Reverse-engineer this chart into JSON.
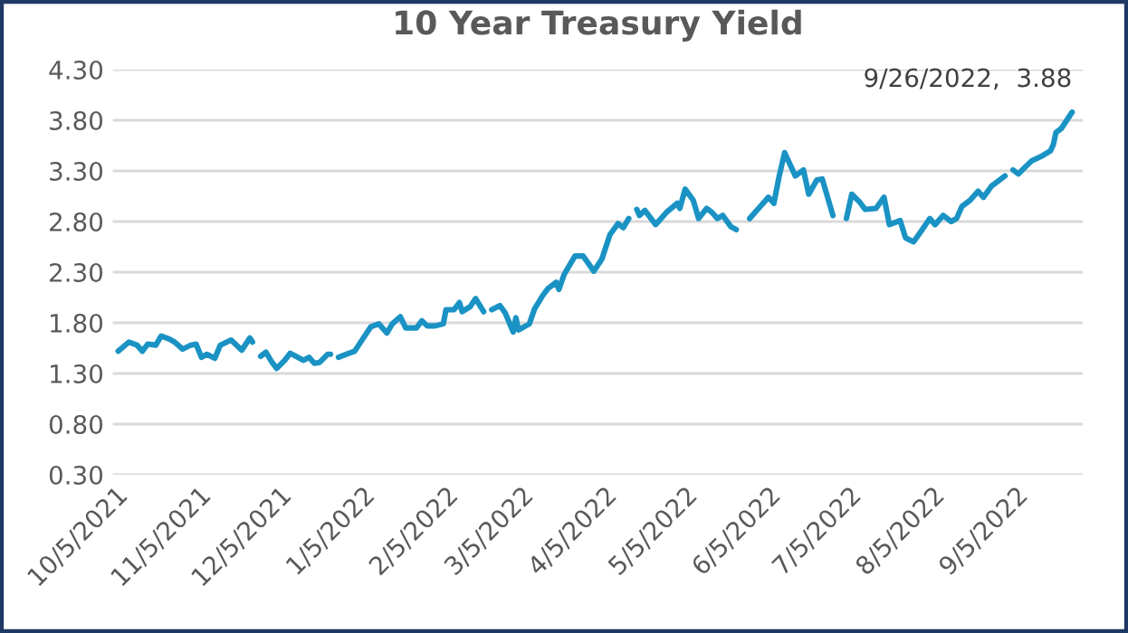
{
  "chart_data": {
    "type": "line",
    "title": "10 Year Treasury Yield",
    "x": [
      "2021-10-06",
      "2021-10-10",
      "2021-10-13",
      "2021-10-15",
      "2021-10-17",
      "2021-10-20",
      "2021-10-22",
      "2021-10-25",
      "2021-10-27",
      "2021-10-30",
      "2021-11-02",
      "2021-11-04",
      "2021-11-06",
      "2021-11-08",
      "2021-11-11",
      "2021-11-13",
      "2021-11-17",
      "2021-11-21",
      "2021-11-24",
      "2021-11-25",
      "2021-11-27",
      "2021-11-28",
      "2021-11-30",
      "2021-12-02",
      "2021-12-04",
      "2021-12-07",
      "2021-12-09",
      "2021-12-14",
      "2021-12-16",
      "2021-12-18",
      "2021-12-20",
      "2021-12-23",
      "2021-12-24",
      "2021-12-26",
      "2021-12-27",
      "2021-12-30",
      "2022-01-02",
      "2022-01-05",
      "2022-01-08",
      "2022-01-11",
      "2022-01-14",
      "2022-01-16",
      "2022-01-19",
      "2022-01-21",
      "2022-01-25",
      "2022-01-27",
      "2022-01-29",
      "2022-02-01",
      "2022-02-04",
      "2022-02-05",
      "2022-02-08",
      "2022-02-10",
      "2022-02-11",
      "2022-02-14",
      "2022-02-16",
      "2022-02-19",
      "2022-02-20",
      "2022-02-22",
      "2022-02-25",
      "2022-02-27",
      "2022-03-02",
      "2022-03-03",
      "2022-03-04",
      "2022-03-08",
      "2022-03-10",
      "2022-03-13",
      "2022-03-15",
      "2022-03-18",
      "2022-03-19",
      "2022-03-21",
      "2022-03-23",
      "2022-03-25",
      "2022-03-28",
      "2022-04-01",
      "2022-04-04",
      "2022-04-07",
      "2022-04-10",
      "2022-04-12",
      "2022-04-14",
      "2022-04-16",
      "2022-04-17",
      "2022-04-18",
      "2022-04-20",
      "2022-04-24",
      "2022-04-28",
      "2022-05-02",
      "2022-05-03",
      "2022-05-05",
      "2022-05-08",
      "2022-05-10",
      "2022-05-13",
      "2022-05-15",
      "2022-05-17",
      "2022-05-19",
      "2022-05-22",
      "2022-05-24",
      "2022-05-26",
      "2022-05-29",
      "2022-06-01",
      "2022-06-05",
      "2022-06-07",
      "2022-06-09",
      "2022-06-11",
      "2022-06-15",
      "2022-06-18",
      "2022-06-20",
      "2022-06-23",
      "2022-06-25",
      "2022-06-29",
      "2022-07-01",
      "2022-07-04",
      "2022-07-06",
      "2022-07-09",
      "2022-07-11",
      "2022-07-15",
      "2022-07-18",
      "2022-07-20",
      "2022-07-24",
      "2022-07-26",
      "2022-07-29",
      "2022-08-02",
      "2022-08-04",
      "2022-08-06",
      "2022-08-09",
      "2022-08-12",
      "2022-08-14",
      "2022-08-16",
      "2022-08-19",
      "2022-08-22",
      "2022-08-24",
      "2022-08-27",
      "2022-09-01",
      "2022-09-03",
      "2022-09-04",
      "2022-09-06",
      "2022-09-09",
      "2022-09-11",
      "2022-09-15",
      "2022-09-18",
      "2022-09-19",
      "2022-09-20",
      "2022-09-22",
      "2022-09-26"
    ],
    "series": [
      {
        "color": "#1a93c4",
        "values": [
          1.52,
          1.61,
          1.58,
          1.52,
          1.59,
          1.58,
          1.67,
          1.64,
          1.61,
          1.54,
          1.58,
          1.59,
          1.46,
          1.49,
          1.45,
          1.58,
          1.63,
          1.53,
          1.65,
          1.61,
          null,
          1.47,
          1.51,
          1.42,
          1.35,
          1.43,
          1.5,
          1.43,
          1.46,
          1.4,
          1.41,
          1.49,
          1.49,
          null,
          1.46,
          1.49,
          1.52,
          1.64,
          1.76,
          1.79,
          1.7,
          1.79,
          1.86,
          1.75,
          1.75,
          1.82,
          1.77,
          1.77,
          1.79,
          1.93,
          1.93,
          2.0,
          1.91,
          1.96,
          2.04,
          1.91,
          null,
          1.93,
          1.97,
          1.9,
          1.71,
          1.85,
          1.73,
          1.79,
          1.94,
          2.07,
          2.14,
          2.2,
          2.13,
          2.28,
          2.37,
          2.46,
          2.46,
          2.31,
          2.43,
          2.67,
          2.78,
          2.74,
          2.83,
          null,
          2.92,
          2.86,
          2.91,
          2.77,
          2.89,
          2.98,
          2.93,
          3.12,
          3.01,
          2.83,
          2.93,
          2.89,
          2.83,
          2.86,
          2.75,
          2.72,
          null,
          2.83,
          2.92,
          3.04,
          2.98,
          3.25,
          3.48,
          3.25,
          3.31,
          3.07,
          3.21,
          3.22,
          2.86,
          null,
          2.83,
          3.07,
          2.99,
          2.92,
          2.93,
          3.04,
          2.77,
          2.81,
          2.64,
          2.6,
          2.75,
          2.83,
          2.77,
          2.86,
          2.8,
          2.83,
          2.95,
          3.01,
          3.1,
          3.04,
          3.15,
          3.25,
          null,
          3.31,
          3.27,
          3.35,
          3.4,
          3.45,
          3.5,
          3.56,
          3.68,
          3.72,
          3.88
        ]
      }
    ],
    "xlim": [
      "2021-10-04",
      "2022-09-30"
    ],
    "xticks": [
      {
        "value": "2021-10-05",
        "label": "10/5/2021"
      },
      {
        "value": "2021-11-05",
        "label": "11/5/2021"
      },
      {
        "value": "2021-12-05",
        "label": "12/5/2021"
      },
      {
        "value": "2022-01-05",
        "label": "1/5/2022"
      },
      {
        "value": "2022-02-05",
        "label": "2/5/2022"
      },
      {
        "value": "2022-03-05",
        "label": "3/5/2022"
      },
      {
        "value": "2022-04-05",
        "label": "4/5/2022"
      },
      {
        "value": "2022-05-05",
        "label": "5/5/2022"
      },
      {
        "value": "2022-06-05",
        "label": "6/5/2022"
      },
      {
        "value": "2022-07-05",
        "label": "7/5/2022"
      },
      {
        "value": "2022-08-05",
        "label": "8/5/2022"
      },
      {
        "value": "2022-09-05",
        "label": "9/5/2022"
      }
    ],
    "ylim": [
      0.3,
      4.3
    ],
    "yticks": [
      {
        "value": 0.3,
        "label": "0.30"
      },
      {
        "value": 0.8,
        "label": "0.80"
      },
      {
        "value": 1.3,
        "label": "1.30"
      },
      {
        "value": 1.8,
        "label": "1.80"
      },
      {
        "value": 2.3,
        "label": "2.30"
      },
      {
        "value": 2.8,
        "label": "2.80"
      },
      {
        "value": 3.3,
        "label": "3.30"
      },
      {
        "value": 3.8,
        "label": "3.80"
      },
      {
        "value": 4.3,
        "label": "4.30"
      }
    ],
    "grid": "y",
    "annotations": [
      {
        "text": "9/26/2022,  3.88",
        "x": "2022-09-26",
        "y": 3.88
      }
    ]
  }
}
